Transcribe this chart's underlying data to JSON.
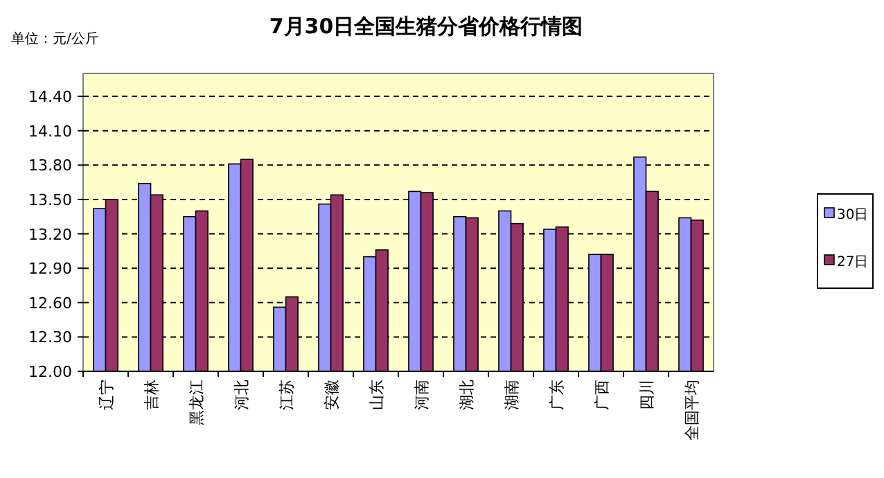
{
  "chart_data": {
    "type": "bar",
    "title": "7月30日全国生猪分省价格行情图",
    "subtitle": "单位：元/公斤",
    "categories": [
      "辽宁",
      "吉林",
      "黑龙江",
      "河北",
      "江苏",
      "安徽",
      "山东",
      "河南",
      "湖北",
      "湖南",
      "广东",
      "广西",
      "四川",
      "全国平均"
    ],
    "series": [
      {
        "name": "30日",
        "color": "#9999ff",
        "values": [
          13.42,
          13.64,
          13.35,
          13.81,
          12.56,
          13.46,
          13.0,
          13.57,
          13.35,
          13.4,
          13.24,
          13.02,
          13.87,
          13.34
        ]
      },
      {
        "name": "27日",
        "color": "#993366",
        "values": [
          13.5,
          13.54,
          13.4,
          13.85,
          12.65,
          13.54,
          13.06,
          13.56,
          13.34,
          13.29,
          13.26,
          13.02,
          13.57,
          13.32
        ]
      }
    ],
    "ylim": [
      12.0,
      14.6
    ],
    "yticks": [
      {
        "value": 12.0,
        "label": "12.00"
      },
      {
        "value": 12.3,
        "label": "12.30"
      },
      {
        "value": 12.6,
        "label": "12.60"
      },
      {
        "value": 12.9,
        "label": "12.90"
      },
      {
        "value": 13.2,
        "label": "13.20"
      },
      {
        "value": 13.5,
        "label": "13.50"
      },
      {
        "value": 13.8,
        "label": "13.80"
      },
      {
        "value": 14.1,
        "label": "14.10"
      },
      {
        "value": 14.4,
        "label": "14.40"
      }
    ],
    "grid": "y",
    "legend": "right"
  }
}
